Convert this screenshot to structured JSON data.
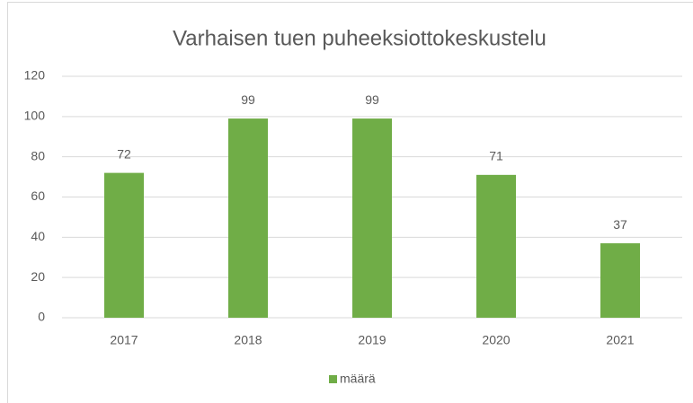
{
  "chart_data": {
    "type": "bar",
    "title": "Varhaisen tuen puheeksiottokeskustelu",
    "categories": [
      "2017",
      "2018",
      "2019",
      "2020",
      "2021"
    ],
    "series": [
      {
        "name": "määrä",
        "color": "#70ad47",
        "values": [
          72,
          99,
          99,
          71,
          37
        ]
      }
    ],
    "ylim": [
      0,
      120
    ],
    "yticks": [
      0,
      20,
      40,
      60,
      80,
      100,
      120
    ],
    "grid": true,
    "legend": "bottom",
    "data_labels": true
  }
}
